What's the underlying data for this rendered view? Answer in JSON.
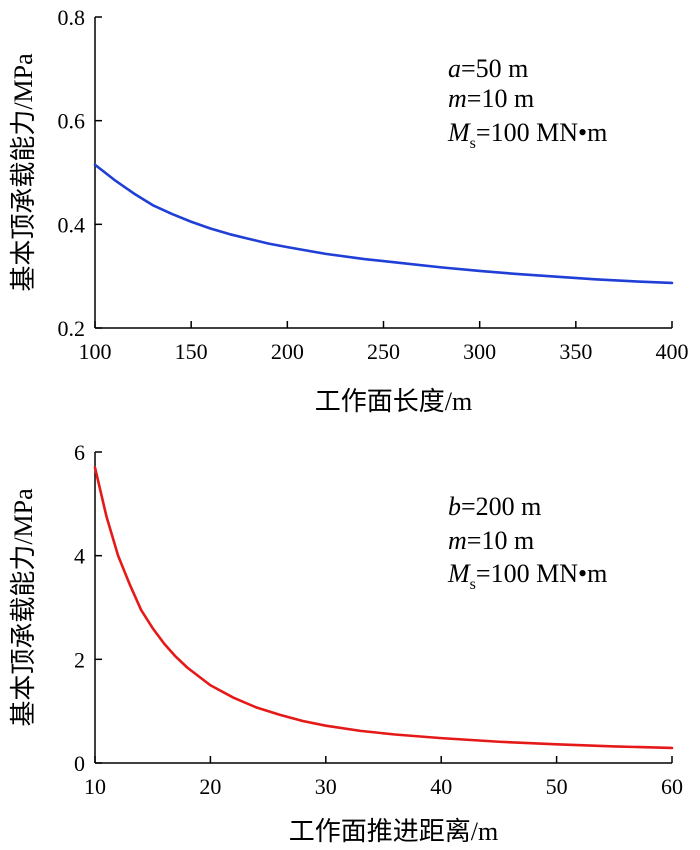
{
  "chart_data": [
    {
      "type": "line",
      "xlabel": "工作面长度/m",
      "ylabel": "基本顶承载能力/MPa",
      "xlim": [
        100,
        400
      ],
      "ylim": [
        0.2,
        0.8
      ],
      "xticks": [
        "100",
        "150",
        "200",
        "250",
        "300",
        "350",
        "400"
      ],
      "yticks": [
        "0.2",
        "0.4",
        "0.6",
        "0.8"
      ],
      "grid": false,
      "series": [
        {
          "color": "#1f3fd6",
          "x": [
            100,
            110,
            120,
            130,
            140,
            150,
            160,
            170,
            180,
            190,
            200,
            220,
            240,
            260,
            280,
            300,
            320,
            340,
            360,
            380,
            400
          ],
          "y": [
            0.515,
            0.486,
            0.46,
            0.437,
            0.42,
            0.405,
            0.392,
            0.381,
            0.372,
            0.363,
            0.356,
            0.343,
            0.333,
            0.325,
            0.317,
            0.31,
            0.304,
            0.299,
            0.294,
            0.29,
            0.287
          ]
        }
      ],
      "annotations": [
        {
          "var": "a",
          "value": "=50 m"
        },
        {
          "var": "m",
          "value": "=10 m"
        },
        {
          "var": "M",
          "sub": "s",
          "value": "=100 MN•m"
        }
      ]
    },
    {
      "type": "line",
      "xlabel": "工作面推进距离/m",
      "ylabel": "基本顶承载能力/MPa",
      "xlim": [
        10,
        60
      ],
      "ylim": [
        0,
        6
      ],
      "xticks": [
        "10",
        "20",
        "30",
        "40",
        "50",
        "60"
      ],
      "yticks": [
        "0",
        "2",
        "4",
        "6"
      ],
      "grid": false,
      "series": [
        {
          "color": "#e61919",
          "x": [
            10,
            11,
            12,
            13,
            14,
            15,
            16,
            17,
            18,
            20,
            22,
            24,
            26,
            28,
            30,
            33,
            36,
            40,
            45,
            50,
            55,
            60
          ],
          "y": [
            5.7,
            4.75,
            4.0,
            3.45,
            2.95,
            2.6,
            2.3,
            2.05,
            1.84,
            1.5,
            1.26,
            1.07,
            0.93,
            0.81,
            0.72,
            0.62,
            0.55,
            0.48,
            0.41,
            0.36,
            0.32,
            0.29
          ]
        }
      ],
      "annotations": [
        {
          "var": "b",
          "value": "=200 m"
        },
        {
          "var": "m",
          "value": "=10 m"
        },
        {
          "var": "M",
          "sub": "s",
          "value": "=100 MN•m"
        }
      ]
    }
  ]
}
